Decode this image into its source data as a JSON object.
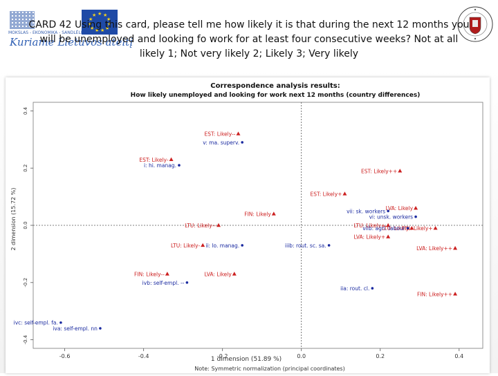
{
  "slide": {
    "title": "CARD 42 Using this card, please tell me how likely it is that during the  next 12 months you will be unemployed and looking fo work for at least four consecutive weeks? Not at all likely 1; Not very likely 2; Likely 3; Very likely",
    "logo_left_text": "MOKSLAS - EKONOMIKA - SANDLĖLIS",
    "logo_left_script": "Kuriame Lietuvos ateitį",
    "uni_logo_name": "university-seal"
  },
  "colors": {
    "country_points": "#cc2020",
    "category_points": "#1a2aa0",
    "axis": "#555555"
  },
  "chart_data": {
    "type": "scatter",
    "title": "Correspondence analysis results:",
    "subtitle": "How likely unemployed and looking for work next 12 months (country differences)",
    "xlabel": "1 dimension (51.89 %)",
    "ylabel": "2 dimension (15.72 %)",
    "note": "Note: Symmetric normalization (principal coordinates)",
    "xlim": [
      -0.68,
      0.46
    ],
    "ylim": [
      -0.43,
      0.43
    ],
    "xticks": [
      "-0.6",
      "-0.4",
      "-0.2",
      "0.0",
      "0.2",
      "0.4"
    ],
    "yticks": [
      "-0.4",
      "-0.2",
      "0.0",
      "0.2",
      "0.4"
    ],
    "series": [
      {
        "name": "country-likelihood",
        "marker": "triangle",
        "points": [
          {
            "label": "EST: Likely--",
            "x": -0.16,
            "y": 0.32
          },
          {
            "label": "EST: Likely-",
            "x": -0.33,
            "y": 0.23
          },
          {
            "label": "EST: Likely++",
            "x": 0.25,
            "y": 0.19
          },
          {
            "label": "EST: Likely+",
            "x": 0.11,
            "y": 0.11
          },
          {
            "label": "FIN: Likely",
            "x": -0.07,
            "y": 0.04
          },
          {
            "label": "LVA: Likely",
            "x": 0.29,
            "y": 0.06
          },
          {
            "label": "LTU: Likely--",
            "x": -0.21,
            "y": 0.0
          },
          {
            "label": "LTU: Likely+",
            "x": 0.22,
            "y": 0.0
          },
          {
            "label": "LTU: Likely",
            "x": 0.28,
            "y": -0.01
          },
          {
            "label": "FIN: Likely+",
            "x": 0.34,
            "y": -0.01
          },
          {
            "label": "LVA: Likely+",
            "x": 0.22,
            "y": -0.04
          },
          {
            "label": "LVA: Likely++",
            "x": 0.39,
            "y": -0.08
          },
          {
            "label": "LTU: Likely-",
            "x": -0.25,
            "y": -0.07
          },
          {
            "label": "FIN: Likely--",
            "x": -0.34,
            "y": -0.17
          },
          {
            "label": "LVA: Likely",
            "x": -0.17,
            "y": -0.17
          },
          {
            "label": "FIN: Likely++",
            "x": 0.39,
            "y": -0.24
          }
        ]
      },
      {
        "name": "occupation-category",
        "marker": "dot",
        "points": [
          {
            "label": "v: ma. superv.",
            "x": -0.15,
            "y": 0.29
          },
          {
            "label": "i: hi. manag.",
            "x": -0.31,
            "y": 0.21
          },
          {
            "label": "vii: sk. workers",
            "x": 0.22,
            "y": 0.05
          },
          {
            "label": "vi: unsk. workers",
            "x": 0.29,
            "y": 0.03
          },
          {
            "label": "viib: agri. labour",
            "x": 0.27,
            "y": -0.01
          },
          {
            "label": "ii: lo. manag.",
            "x": -0.15,
            "y": -0.07
          },
          {
            "label": "iiib: rout. sc. sa.",
            "x": 0.07,
            "y": -0.07
          },
          {
            "label": "ivb: self-empl. --",
            "x": -0.29,
            "y": -0.2
          },
          {
            "label": "iia: rout. cl.",
            "x": 0.18,
            "y": -0.22
          },
          {
            "label": "ivc: self-empl. fa.",
            "x": -0.61,
            "y": -0.34
          },
          {
            "label": "iva: self-empl. nn",
            "x": -0.51,
            "y": -0.36
          }
        ]
      }
    ]
  }
}
